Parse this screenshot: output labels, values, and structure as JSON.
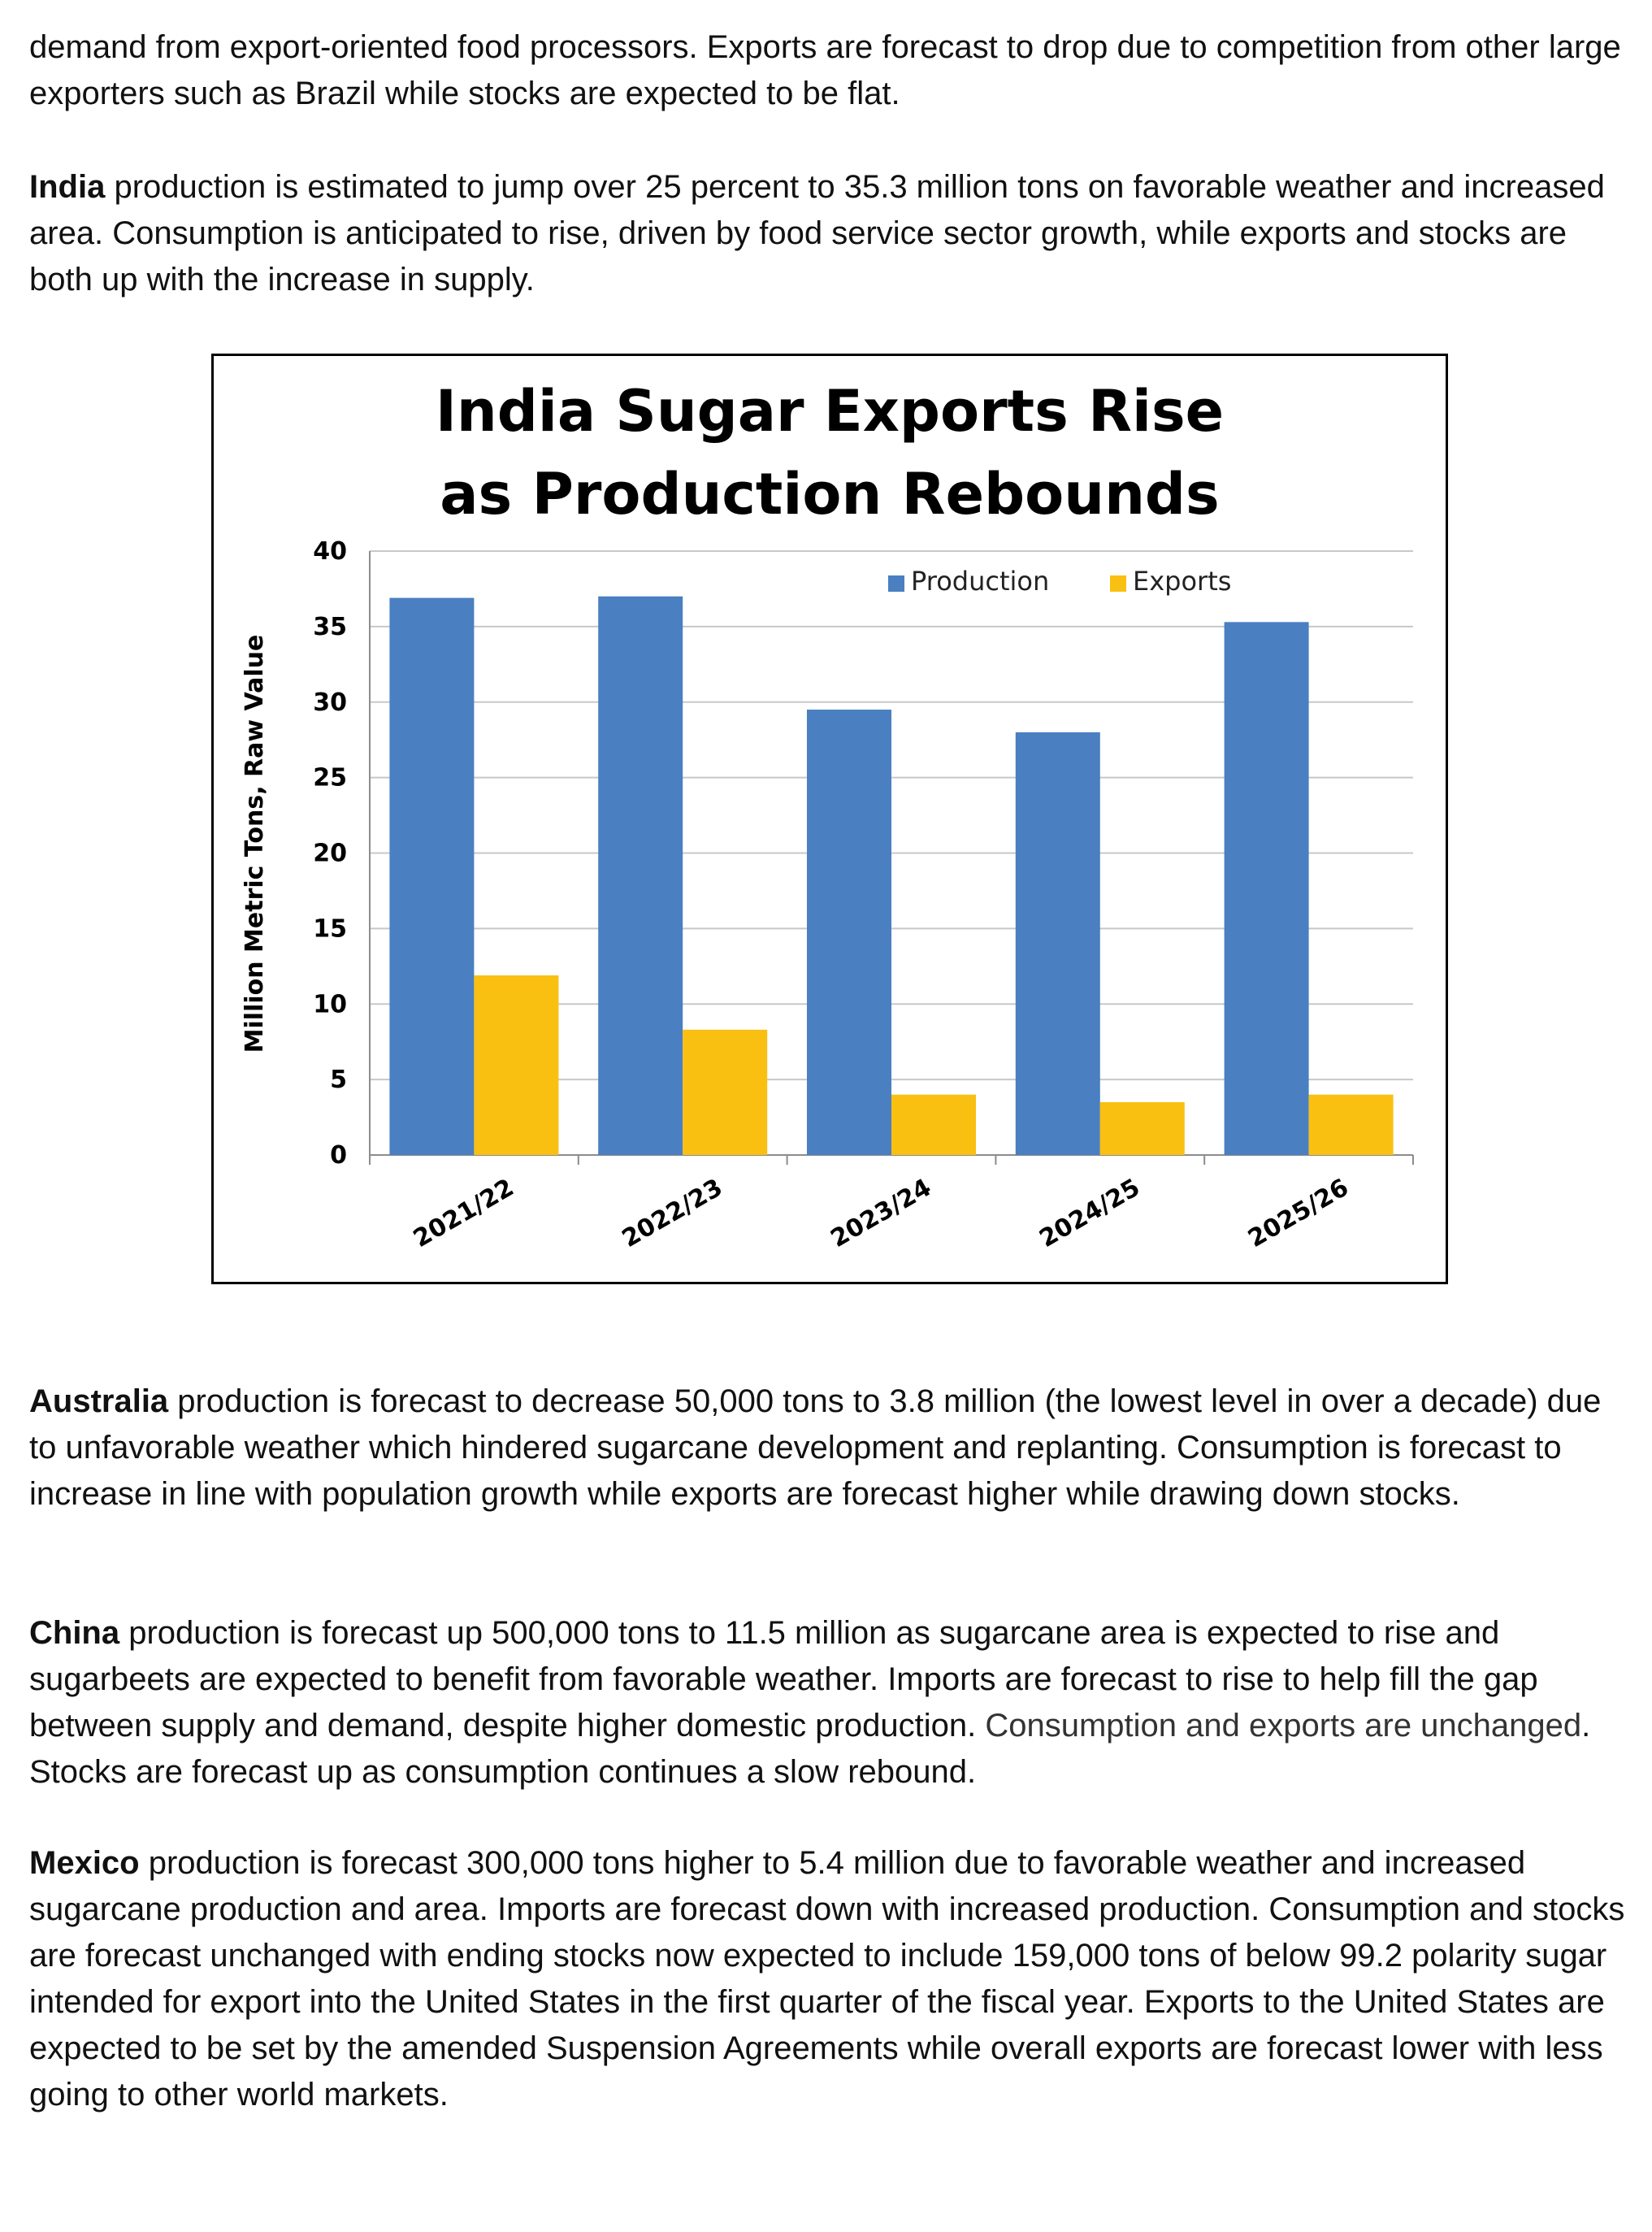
{
  "paragraphs": {
    "p1": {
      "text": "demand from export-oriented food processors. Exports are forecast to drop due to competition from other large exporters such as Brazil while stocks are expected to be flat."
    },
    "india": {
      "lead": "India",
      "text": " production is estimated to jump over 25 percent to 35.3 million tons on favorable weather and increased area. Consumption is anticipated to rise, driven by food service sector growth, while exports and stocks are both up with the increase in supply."
    },
    "australia": {
      "lead": "Australia",
      "text": " production is forecast to decrease 50,000 tons to 3.8 million (the lowest level in over a decade) due to unfavorable weather which hindered sugarcane development and replanting. Consumption is forecast to increase in line with population growth while exports are forecast higher while drawing down stocks."
    },
    "china": {
      "lead": "China",
      "text_a": " production is forecast up 500,000 tons to 11.5 million as sugarcane area is expected to rise and sugarbeets are expected to benefit from favorable weather. Imports are forecast to rise to help fill the gap between supply and demand, despite higher domestic production. ",
      "text_b": "Consumption and exports are unchanged",
      "text_c": ". Stocks are forecast up as consumption continues a slow rebound."
    },
    "mexico": {
      "lead": "Mexico",
      "text": " production is forecast 300,000 tons higher to 5.4 million due to favorable weather and increased sugarcane production and area. Imports are forecast down with increased production. Consumption and stocks are forecast unchanged with ending stocks now expected to include 159,000 tons of below 99.2 polarity sugar intended for export into the United States in the first quarter of the fiscal year. Exports to the United States are expected to be set by the amended Suspension Agreements while overall exports are forecast lower with less going to other world markets."
    }
  },
  "chart_data": {
    "type": "bar",
    "title_line1": "India Sugar Exports Rise",
    "title_line2": "as Production Rebounds",
    "ylabel": "Million Metric Tons, Raw Value",
    "xlabel": "",
    "ylim": [
      0,
      40
    ],
    "yticks": [
      "0",
      "5",
      "10",
      "15",
      "20",
      "25",
      "30",
      "35",
      "40"
    ],
    "grid": true,
    "legend_position": "top-right",
    "categories": [
      "2021/22",
      "2022/23",
      "2023/24",
      "2024/25",
      "2025/26"
    ],
    "series": [
      {
        "name": "Production",
        "color": "#4a7fc1",
        "values": [
          36.9,
          37.0,
          29.5,
          28.0,
          35.3
        ]
      },
      {
        "name": "Exports",
        "color": "#f9c012",
        "values": [
          11.9,
          8.3,
          4.0,
          3.5,
          4.0
        ]
      }
    ]
  }
}
